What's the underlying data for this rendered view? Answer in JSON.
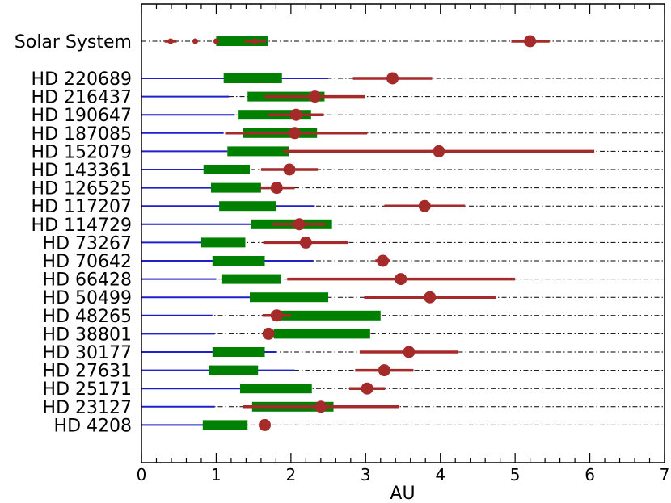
{
  "chart_data": {
    "type": "range",
    "xlabel": "AU",
    "xlim": [
      0,
      7
    ],
    "x_ticks": [
      "0",
      "1",
      "2",
      "3",
      "4",
      "5",
      "6",
      "7"
    ],
    "grid": false,
    "colors": {
      "dashdot_line": "#000000",
      "blue_segment": "#1f1fcc",
      "green_zone": "#008000",
      "planet": "#a52a2a",
      "frame": "#000000"
    },
    "systems": [
      {
        "name": "Solar System",
        "blue": null,
        "green": [
          1.0,
          1.69
        ],
        "planets": [
          {
            "a": 0.39,
            "range": [
              0.31,
              0.47
            ],
            "size": "small"
          },
          {
            "a": 0.72,
            "range": [
              0.72,
              0.73
            ],
            "size": "small"
          },
          {
            "a": 1.0,
            "range": [
              0.98,
              1.02
            ],
            "size": "small"
          },
          {
            "a": 1.52,
            "range": [
              1.38,
              1.67
            ],
            "size": "small"
          },
          {
            "a": 5.2,
            "range": [
              4.95,
              5.46
            ],
            "size": "large"
          }
        ]
      },
      {
        "name": "HD 220689",
        "blue": [
          0,
          2.5
        ],
        "green": [
          1.1,
          1.88
        ],
        "planets": [
          {
            "a": 3.36,
            "range": [
              2.83,
              3.89
            ],
            "size": "large"
          }
        ]
      },
      {
        "name": "HD 216437",
        "blue": [
          0,
          1.17
        ],
        "green": [
          1.42,
          2.45
        ],
        "planets": [
          {
            "a": 2.32,
            "range": [
              1.65,
              2.99
            ],
            "size": "large"
          }
        ]
      },
      {
        "name": "HD 190647",
        "blue": [
          0,
          1.25
        ],
        "green": [
          1.3,
          2.27
        ],
        "planets": [
          {
            "a": 2.07,
            "range": [
              1.7,
              2.44
            ],
            "size": "large"
          }
        ]
      },
      {
        "name": "HD 187085",
        "blue": [
          0,
          1.1
        ],
        "green": [
          1.36,
          2.35
        ],
        "planets": [
          {
            "a": 2.05,
            "range": [
              1.12,
              3.02
            ],
            "size": "large"
          }
        ]
      },
      {
        "name": "HD 152079",
        "blue": [
          0,
          1.15
        ],
        "green": [
          1.15,
          1.97
        ],
        "planets": [
          {
            "a": 3.98,
            "range": [
              1.9,
              6.06
            ],
            "size": "large"
          }
        ]
      },
      {
        "name": "HD 143361",
        "blue": [
          0,
          1.05
        ],
        "green": [
          0.83,
          1.45
        ],
        "planets": [
          {
            "a": 1.98,
            "range": [
              1.6,
              2.36
            ],
            "size": "large"
          }
        ]
      },
      {
        "name": "HD 126525",
        "blue": [
          0,
          1.5
        ],
        "green": [
          0.93,
          1.6
        ],
        "planets": [
          {
            "a": 1.81,
            "range": [
              1.58,
              2.05
            ],
            "size": "large"
          }
        ]
      },
      {
        "name": "HD 117207",
        "blue": [
          0,
          2.32
        ],
        "green": [
          1.04,
          1.8
        ],
        "planets": [
          {
            "a": 3.79,
            "range": [
              3.25,
              4.33
            ],
            "size": "large"
          }
        ]
      },
      {
        "name": "HD 114729",
        "blue": [
          0,
          1.5
        ],
        "green": [
          1.47,
          2.55
        ],
        "planets": [
          {
            "a": 2.11,
            "range": [
              1.75,
              2.47
            ],
            "size": "large"
          }
        ]
      },
      {
        "name": "HD 73267",
        "blue": [
          0,
          1.05
        ],
        "green": [
          0.8,
          1.39
        ],
        "planets": [
          {
            "a": 2.2,
            "range": [
              1.63,
              2.77
            ],
            "size": "large"
          }
        ]
      },
      {
        "name": "HD 70642",
        "blue": [
          0,
          2.3
        ],
        "green": [
          0.95,
          1.65
        ],
        "planets": [
          {
            "a": 3.23,
            "range": [
              3.13,
              3.33
            ],
            "size": "large"
          }
        ]
      },
      {
        "name": "HD 66428",
        "blue": [
          0,
          1.0
        ],
        "green": [
          1.07,
          1.87
        ],
        "planets": [
          {
            "a": 3.47,
            "range": [
              1.95,
              5.0
            ],
            "size": "large"
          }
        ]
      },
      {
        "name": "HD 50499",
        "blue": [
          0,
          1.92
        ],
        "green": [
          1.45,
          2.5
        ],
        "planets": [
          {
            "a": 3.86,
            "range": [
              2.98,
              4.74
            ],
            "size": "large"
          }
        ]
      },
      {
        "name": "HD 48265",
        "blue": [
          0,
          0.95
        ],
        "green": [
          1.85,
          3.2
        ],
        "planets": [
          {
            "a": 1.81,
            "range": [
              1.62,
              2.0
            ],
            "size": "large"
          }
        ]
      },
      {
        "name": "HD 38801",
        "blue": [
          0,
          0.98
        ],
        "green": [
          1.77,
          3.06
        ],
        "planets": [
          {
            "a": 1.7,
            "range": [
              1.7,
              1.7
            ],
            "size": "large"
          }
        ]
      },
      {
        "name": "HD 30177",
        "blue": [
          0,
          1.8
        ],
        "green": [
          0.95,
          1.65
        ],
        "planets": [
          {
            "a": 3.58,
            "range": [
              2.92,
              4.24
            ],
            "size": "large"
          }
        ]
      },
      {
        "name": "HD 27631",
        "blue": [
          0,
          2.05
        ],
        "green": [
          0.9,
          1.56
        ],
        "planets": [
          {
            "a": 3.25,
            "range": [
              2.86,
              3.64
            ],
            "size": "large"
          }
        ]
      },
      {
        "name": "HD 25171",
        "blue": [
          0,
          2.12
        ],
        "green": [
          1.32,
          2.28
        ],
        "planets": [
          {
            "a": 3.02,
            "range": [
              2.78,
              3.26
            ],
            "size": "large"
          }
        ]
      },
      {
        "name": "HD 23127",
        "blue": [
          0,
          0.98
        ],
        "green": [
          1.48,
          2.57
        ],
        "planets": [
          {
            "a": 2.4,
            "range": [
              1.36,
              3.45
            ],
            "size": "large"
          }
        ]
      },
      {
        "name": "HD 4208",
        "blue": [
          0,
          1.25
        ],
        "green": [
          0.82,
          1.42
        ],
        "planets": [
          {
            "a": 1.65,
            "range": [
              1.65,
              1.65
            ],
            "size": "large"
          }
        ]
      }
    ]
  }
}
